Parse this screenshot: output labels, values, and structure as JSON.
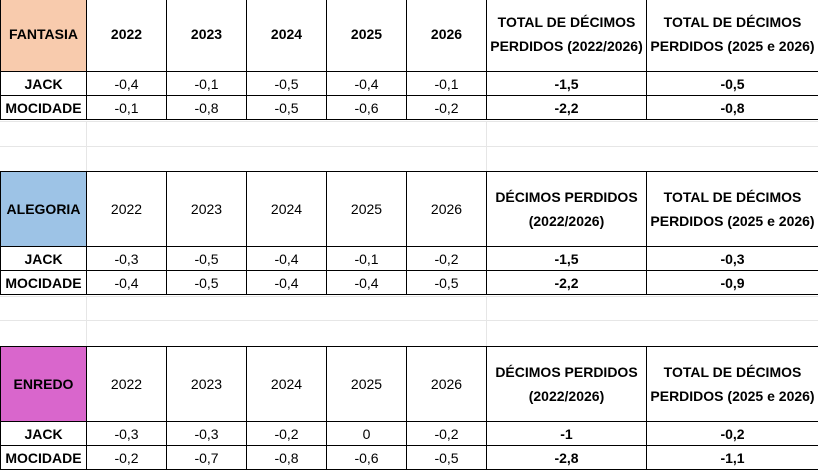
{
  "sections": [
    {
      "name": "FANTASIA",
      "color": "#f8cbad",
      "years": [
        "2022",
        "2023",
        "2024",
        "2025",
        "2026"
      ],
      "years_bold": true,
      "total1_header": "TOTAL DE DÉCIMOS PERDIDOS (2022/2026)",
      "total2_header": "TOTAL DE DÉCIMOS PERDIDOS (2025 e 2026)",
      "rows": [
        {
          "label": "JACK",
          "values": [
            "-0,4",
            "-0,1",
            "-0,5",
            "-0,4",
            "-0,1"
          ],
          "red": [
            true,
            false,
            false,
            false,
            false
          ],
          "total1": "-1,5",
          "total2": "-0,5",
          "total_red": false
        },
        {
          "label": "MOCIDADE",
          "values": [
            "-0,1",
            "-0,8",
            "-0,5",
            "-0,6",
            "-0,2"
          ],
          "red": [
            false,
            true,
            false,
            true,
            true
          ],
          "total1": "-2,2",
          "total2": "-0,8",
          "total_red": true
        }
      ]
    },
    {
      "name": "ALEGORIA",
      "color": "#9dc3e6",
      "years": [
        "2022",
        "2023",
        "2024",
        "2025",
        "2026"
      ],
      "years_bold": false,
      "total1_header": "DÉCIMOS PERDIDOS (2022/2026)",
      "total2_header": "TOTAL DE DÉCIMOS PERDIDOS (2025 e 2026)",
      "rows": [
        {
          "label": "JACK",
          "values": [
            "-0,3",
            "-0,5",
            "-0,4",
            "-0,1",
            "-0,2"
          ],
          "red": [
            false,
            false,
            false,
            false,
            false
          ],
          "total1": "-1,5",
          "total2": "-0,3",
          "total_red": false
        },
        {
          "label": "MOCIDADE",
          "values": [
            "-0,4",
            "-0,5",
            "-0,4",
            "-0,4",
            "-0,5"
          ],
          "red": [
            true,
            false,
            false,
            true,
            true
          ],
          "total1": "-2,2",
          "total2": "-0,9",
          "total_red": true
        }
      ]
    },
    {
      "name": "ENREDO",
      "color": "#d966cc",
      "years": [
        "2022",
        "2023",
        "2024",
        "2025",
        "2026"
      ],
      "years_bold": false,
      "total1_header": "DÉCIMOS PERDIDOS (2022/2026)",
      "total2_header": "TOTAL DE DÉCIMOS PERDIDOS (2025 e 2026)",
      "rows": [
        {
          "label": "JACK",
          "values": [
            "-0,3",
            "-0,3",
            "-0,2",
            "0",
            "-0,2"
          ],
          "red": [
            true,
            false,
            false,
            false,
            false
          ],
          "total1": "-1",
          "total2": "-0,2",
          "total_red": false
        },
        {
          "label": "MOCIDADE",
          "values": [
            "-0,2",
            "-0,7",
            "-0,8",
            "-0,6",
            "-0,5"
          ],
          "red": [
            false,
            true,
            true,
            true,
            true
          ],
          "total1": "-2,8",
          "total2": "-1,1",
          "total_red": true
        }
      ]
    }
  ]
}
